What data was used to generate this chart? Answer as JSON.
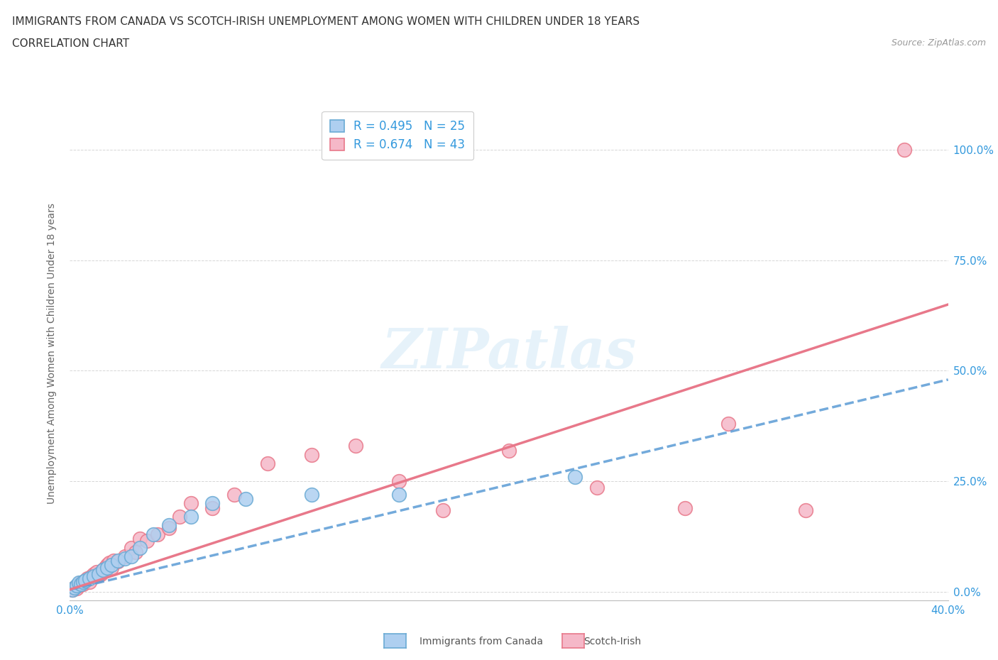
{
  "title_line1": "IMMIGRANTS FROM CANADA VS SCOTCH-IRISH UNEMPLOYMENT AMONG WOMEN WITH CHILDREN UNDER 18 YEARS",
  "title_line2": "CORRELATION CHART",
  "source_text": "Source: ZipAtlas.com",
  "ylabel": "Unemployment Among Women with Children Under 18 years",
  "xlim": [
    0.0,
    0.4
  ],
  "ylim": [
    -0.02,
    1.1
  ],
  "ytick_labels": [
    "0.0%",
    "25.0%",
    "50.0%",
    "75.0%",
    "100.0%"
  ],
  "ytick_values": [
    0.0,
    0.25,
    0.5,
    0.75,
    1.0
  ],
  "xtick_labels": [
    "0.0%",
    "",
    "",
    "",
    "",
    "",
    "",
    "",
    "40.0%"
  ],
  "xtick_values": [
    0.0,
    0.05,
    0.1,
    0.15,
    0.2,
    0.25,
    0.3,
    0.35,
    0.4
  ],
  "canada_R": 0.495,
  "canada_N": 25,
  "scotch_R": 0.674,
  "scotch_N": 43,
  "canada_color": "#aecff0",
  "scotch_color": "#f5b8c8",
  "canada_edge_color": "#6aaad4",
  "scotch_edge_color": "#e8788a",
  "canada_line_color": "#5b9bd5",
  "scotch_line_color": "#e8788a",
  "legend_label_color": "#3399dd",
  "tick_label_color": "#3399dd",
  "watermark": "ZIPatlas",
  "background_color": "#ffffff",
  "grid_color": "#cccccc",
  "canada_x": [
    0.001,
    0.002,
    0.003,
    0.004,
    0.005,
    0.006,
    0.007,
    0.009,
    0.011,
    0.013,
    0.015,
    0.017,
    0.019,
    0.022,
    0.025,
    0.028,
    0.032,
    0.038,
    0.045,
    0.055,
    0.065,
    0.08,
    0.11,
    0.15,
    0.23
  ],
  "canada_y": [
    0.005,
    0.01,
    0.015,
    0.02,
    0.018,
    0.022,
    0.025,
    0.03,
    0.035,
    0.04,
    0.05,
    0.055,
    0.06,
    0.07,
    0.075,
    0.08,
    0.1,
    0.13,
    0.15,
    0.17,
    0.2,
    0.21,
    0.22,
    0.22,
    0.26
  ],
  "scotch_x": [
    0.001,
    0.002,
    0.003,
    0.004,
    0.005,
    0.006,
    0.007,
    0.008,
    0.009,
    0.01,
    0.011,
    0.012,
    0.013,
    0.014,
    0.015,
    0.016,
    0.017,
    0.018,
    0.019,
    0.02,
    0.022,
    0.025,
    0.028,
    0.03,
    0.032,
    0.035,
    0.04,
    0.045,
    0.05,
    0.055,
    0.065,
    0.075,
    0.09,
    0.11,
    0.13,
    0.15,
    0.17,
    0.2,
    0.24,
    0.28,
    0.3,
    0.335,
    0.38
  ],
  "scotch_y": [
    0.005,
    0.01,
    0.008,
    0.015,
    0.02,
    0.018,
    0.025,
    0.03,
    0.022,
    0.035,
    0.04,
    0.045,
    0.038,
    0.04,
    0.05,
    0.055,
    0.06,
    0.065,
    0.055,
    0.07,
    0.068,
    0.08,
    0.1,
    0.09,
    0.12,
    0.115,
    0.13,
    0.145,
    0.17,
    0.2,
    0.19,
    0.22,
    0.29,
    0.31,
    0.33,
    0.25,
    0.185,
    0.32,
    0.235,
    0.19,
    0.38,
    0.185,
    1.0
  ],
  "canada_line_x0": 0.0,
  "canada_line_y0": 0.005,
  "canada_line_x1": 0.4,
  "canada_line_y1": 0.48,
  "scotch_line_x0": 0.0,
  "scotch_line_y0": 0.005,
  "scotch_line_x1": 0.4,
  "scotch_line_y1": 0.65
}
